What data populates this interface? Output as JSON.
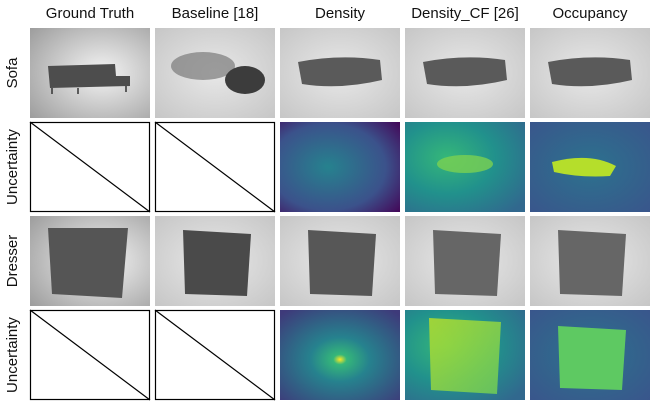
{
  "header": {
    "columns": [
      "Ground Truth",
      "Baseline [18]",
      "Density",
      "Density_CF [26]",
      "Occupancy"
    ]
  },
  "rows": [
    {
      "label": "Sofa"
    },
    {
      "label": "Uncertainty"
    },
    {
      "label": "Dresser"
    },
    {
      "label": "Uncertainty"
    }
  ]
}
